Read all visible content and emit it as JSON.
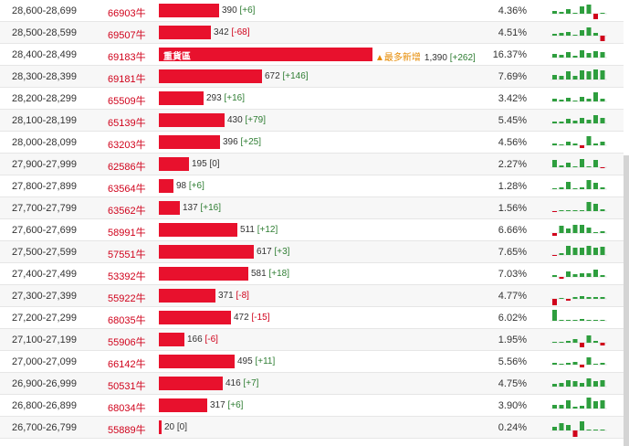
{
  "colors": {
    "bar": "#e8112d",
    "up": "#2e9e3e",
    "down": "#d0021b",
    "code": "#d0021b"
  },
  "rows": [
    {
      "range": "28,600-28,699",
      "code": "66903牛",
      "amount": 390,
      "amount_text": "390",
      "change": "[+6]",
      "dir": "pos",
      "pct": "4.36%",
      "tag": "",
      "badge": "",
      "spark": [
        3,
        2,
        5,
        0,
        8,
        10,
        -6,
        1
      ]
    },
    {
      "range": "28,500-28,599",
      "code": "69507牛",
      "amount": 342,
      "amount_text": "342",
      "change": "[-68]",
      "dir": "neg",
      "pct": "4.51%",
      "tag": "",
      "badge": "",
      "spark": [
        2,
        3,
        4,
        0,
        6,
        9,
        3,
        -6
      ]
    },
    {
      "range": "28,400-28,499",
      "code": "69183牛",
      "amount": 1390,
      "amount_text": "1,390",
      "change": "[+262]",
      "dir": "pos",
      "pct": "16.37%",
      "tag": "重貨區",
      "badge": "▲最多新增",
      "spark": [
        4,
        3,
        6,
        2,
        8,
        5,
        7,
        6
      ]
    },
    {
      "range": "28,300-28,399",
      "code": "69181牛",
      "amount": 672,
      "amount_text": "672",
      "change": "[+146]",
      "dir": "pos",
      "pct": "7.69%",
      "tag": "",
      "badge": "",
      "spark": [
        5,
        4,
        9,
        4,
        10,
        9,
        11,
        10
      ]
    },
    {
      "range": "28,200-28,299",
      "code": "65509牛",
      "amount": 293,
      "amount_text": "293",
      "change": "[+16]",
      "dir": "pos",
      "pct": "3.42%",
      "tag": "",
      "badge": "",
      "spark": [
        3,
        2,
        4,
        1,
        5,
        3,
        10,
        3
      ]
    },
    {
      "range": "28,100-28,199",
      "code": "65139牛",
      "amount": 430,
      "amount_text": "430",
      "change": "[+79]",
      "dir": "pos",
      "pct": "5.45%",
      "tag": "",
      "badge": "",
      "spark": [
        2,
        2,
        5,
        3,
        6,
        4,
        9,
        6
      ]
    },
    {
      "range": "28,000-28,099",
      "code": "63203牛",
      "amount": 396,
      "amount_text": "396",
      "change": "[+25]",
      "dir": "pos",
      "pct": "4.56%",
      "tag": "",
      "badge": "",
      "spark": [
        2,
        1,
        4,
        2,
        -3,
        10,
        2,
        4
      ]
    },
    {
      "range": "27,900-27,999",
      "code": "62586牛",
      "amount": 195,
      "amount_text": "195",
      "change": "[0]",
      "dir": "zero",
      "pct": "2.27%",
      "tag": "",
      "badge": "",
      "spark": [
        8,
        2,
        5,
        1,
        9,
        1,
        8,
        -1
      ]
    },
    {
      "range": "27,800-27,899",
      "code": "63564牛",
      "amount": 98,
      "amount_text": "98",
      "change": "[+6]",
      "dir": "pos",
      "pct": "1.28%",
      "tag": "",
      "badge": "",
      "spark": [
        1,
        2,
        8,
        1,
        2,
        10,
        7,
        2
      ]
    },
    {
      "range": "27,700-27,799",
      "code": "63562牛",
      "amount": 137,
      "amount_text": "137",
      "change": "[+16]",
      "dir": "pos",
      "pct": "1.56%",
      "tag": "",
      "badge": "",
      "spark": [
        -1,
        1,
        1,
        1,
        1,
        10,
        8,
        2
      ]
    },
    {
      "range": "27,600-27,699",
      "code": "58991牛",
      "amount": 511,
      "amount_text": "511",
      "change": "[+12]",
      "dir": "pos",
      "pct": "6.66%",
      "tag": "",
      "badge": "",
      "spark": [
        -3,
        8,
        5,
        9,
        9,
        6,
        1,
        2
      ]
    },
    {
      "range": "27,500-27,599",
      "code": "57551牛",
      "amount": 617,
      "amount_text": "617",
      "change": "[+3]",
      "dir": "pos",
      "pct": "7.65%",
      "tag": "",
      "badge": "",
      "spark": [
        -1,
        2,
        10,
        8,
        8,
        10,
        8,
        9
      ]
    },
    {
      "range": "27,400-27,499",
      "code": "53392牛",
      "amount": 581,
      "amount_text": "581",
      "change": "[+18]",
      "dir": "pos",
      "pct": "7.03%",
      "tag": "",
      "badge": "",
      "spark": [
        2,
        -2,
        6,
        3,
        4,
        4,
        8,
        2
      ]
    },
    {
      "range": "27,300-27,399",
      "code": "55922牛",
      "amount": 371,
      "amount_text": "371",
      "change": "[-8]",
      "dir": "neg",
      "pct": "4.77%",
      "tag": "",
      "badge": "",
      "spark": [
        -9,
        1,
        -2,
        2,
        3,
        2,
        2,
        2
      ]
    },
    {
      "range": "27,200-27,299",
      "code": "68035牛",
      "amount": 472,
      "amount_text": "472",
      "change": "[-15]",
      "dir": "neg",
      "pct": "6.02%",
      "tag": "",
      "badge": "",
      "spark": [
        12,
        1,
        1,
        1,
        2,
        1,
        1,
        1
      ]
    },
    {
      "range": "27,100-27,199",
      "code": "55906牛",
      "amount": 166,
      "amount_text": "166",
      "change": "[-6]",
      "dir": "neg",
      "pct": "1.95%",
      "tag": "",
      "badge": "",
      "spark": [
        1,
        1,
        2,
        4,
        -5,
        8,
        2,
        -3
      ]
    },
    {
      "range": "27,000-27,099",
      "code": "66142牛",
      "amount": 495,
      "amount_text": "495",
      "change": "[+11]",
      "dir": "pos",
      "pct": "5.56%",
      "tag": "",
      "badge": "",
      "spark": [
        2,
        1,
        2,
        3,
        -3,
        8,
        1,
        2
      ]
    },
    {
      "range": "26,900-26,999",
      "code": "50531牛",
      "amount": 416,
      "amount_text": "416",
      "change": "[+7]",
      "dir": "pos",
      "pct": "4.75%",
      "tag": "",
      "badge": "",
      "spark": [
        3,
        4,
        7,
        6,
        4,
        9,
        6,
        7
      ]
    },
    {
      "range": "26,800-26,899",
      "code": "68034牛",
      "amount": 317,
      "amount_text": "317",
      "change": "[+6]",
      "dir": "pos",
      "pct": "3.90%",
      "tag": "",
      "badge": "",
      "spark": [
        4,
        4,
        9,
        2,
        3,
        12,
        8,
        9
      ]
    },
    {
      "range": "26,700-26,799",
      "code": "55889牛",
      "amount": 20,
      "amount_text": "20",
      "change": "[0]",
      "dir": "zero",
      "pct": "0.24%",
      "tag": "",
      "badge": "",
      "spark": [
        4,
        8,
        6,
        -10,
        10,
        1,
        1,
        1
      ]
    }
  ]
}
